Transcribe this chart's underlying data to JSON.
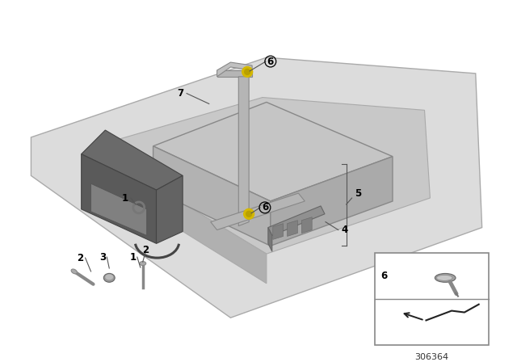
{
  "background_color": "#ffffff",
  "diagram_number": "306364",
  "line_color": "#555555",
  "label_color": "#000000",
  "yellow_fastener_color": "#d4b800",
  "floor_color": "#dcdcdc",
  "recess_color": "#c8c8c8",
  "wall_color": "#b0b0b0",
  "battery_top_color": "#c5c5c5",
  "battery_front_color": "#b2b2b2",
  "battery_side_color": "#aaaaaa",
  "holder_color": "#6a6a6a",
  "bar_color": "#b5b5b5",
  "clamp_color": "#909090",
  "small_part_color": "#888888",
  "box_border_color": "#888888"
}
